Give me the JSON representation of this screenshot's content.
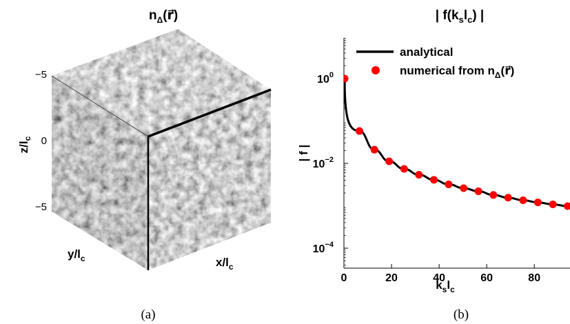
{
  "panel_a": {
    "title_main": "n",
    "title_sub": "Δ",
    "title_arg": "(r⃗)",
    "caption": "(a)",
    "z_label_main": "z/l",
    "z_label_sub": "c",
    "z_ticks": [
      "−5",
      "0",
      "−5"
    ],
    "y_label_main": "y/l",
    "y_label_sub": "c",
    "x_label_main": "x/l",
    "x_label_sub": "c"
  },
  "panel_b": {
    "caption": "(b)"
  },
  "chart_data": {
    "type": "line",
    "title_parts": [
      "| f(k",
      "s",
      "l",
      "c",
      ") |"
    ],
    "ylabel": "| f |",
    "xlabel_parts": [
      "k",
      "s",
      "l",
      "c"
    ],
    "x_ticks": [
      0,
      20,
      40,
      60,
      80
    ],
    "x_tick_labels": [
      "0",
      "20",
      "40",
      "60",
      "80"
    ],
    "y_tick_labels": [
      {
        "base": "10",
        "exp": "0",
        "value": 1
      },
      {
        "base": "10",
        "exp": "−2",
        "value": 0.01
      },
      {
        "base": "10",
        "exp": "−4",
        "value": 0.0001
      }
    ],
    "xlim": [
      0,
      95
    ],
    "ylim": [
      2e-05,
      10
    ],
    "y_scale": "log",
    "grid": false,
    "legend_position": "top",
    "legend": [
      {
        "label_main": "analytical",
        "label_sub": "",
        "label_tail": "",
        "style": "line",
        "color": "#000000"
      },
      {
        "label_main": "numerical from n",
        "label_sub": "Δ",
        "label_tail": "(r⃗)",
        "style": "marker",
        "color": "#ff0000"
      }
    ],
    "series": [
      {
        "style": "marker",
        "color": "#ff0000",
        "x": [
          0.3,
          6.5,
          12.8,
          19,
          25.3,
          31.5,
          37.8,
          44,
          50.3,
          56.5,
          62.8,
          69,
          75.3,
          81.5,
          87.8,
          94
        ],
        "y": [
          1.0,
          0.058,
          0.021,
          0.0112,
          0.0074,
          0.0054,
          0.0041,
          0.0032,
          0.0026,
          0.0022,
          0.0018,
          0.00155,
          0.00135,
          0.0012,
          0.00108,
          0.00098
        ]
      }
    ]
  }
}
